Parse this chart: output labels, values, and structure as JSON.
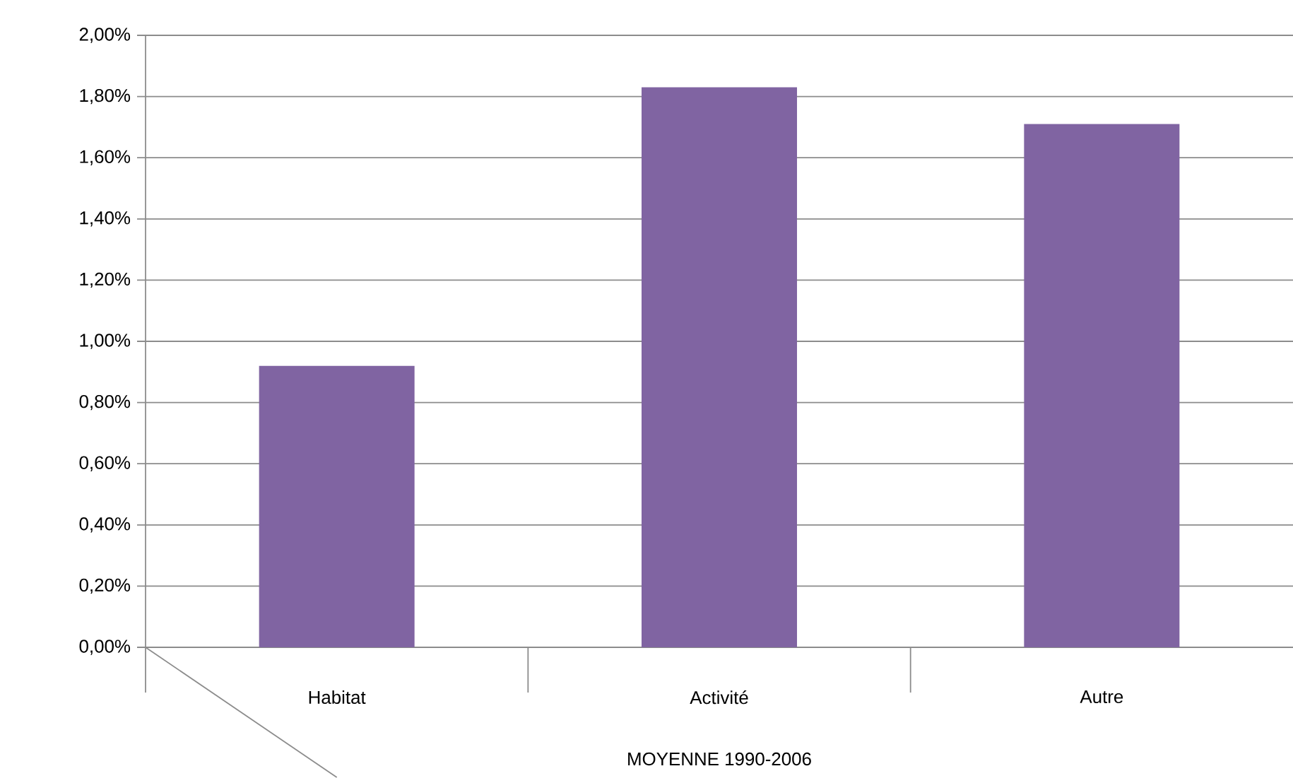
{
  "chart_data": {
    "type": "bar",
    "categories": [
      "Habitat",
      "Activité",
      "Autre"
    ],
    "values": [
      0.92,
      1.83,
      1.71
    ],
    "color": "#8064a2",
    "xlabel": "MOYENNE 1990-2006",
    "ylim": [
      0,
      2
    ],
    "yticks": [
      {
        "value": 0,
        "label": "0,00%"
      },
      {
        "value": 0.2,
        "label": "0,20%"
      },
      {
        "value": 0.4,
        "label": "0,40%"
      },
      {
        "value": 0.6,
        "label": "0,60%"
      },
      {
        "value": 0.8,
        "label": "0,80%"
      },
      {
        "value": 1.0,
        "label": "1,00%"
      },
      {
        "value": 1.2,
        "label": "1,20%"
      },
      {
        "value": 1.4,
        "label": "1,40%"
      },
      {
        "value": 1.6,
        "label": "1,60%"
      },
      {
        "value": 1.8,
        "label": "1,80%"
      },
      {
        "value": 2.0,
        "label": "2,00%"
      }
    ],
    "grid": "y"
  }
}
